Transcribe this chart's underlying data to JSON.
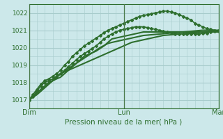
{
  "title": "Pression niveau de la mer( hPa )",
  "bg_color": "#cce8ea",
  "grid_color": "#a8cccc",
  "line_color": "#2d6e2d",
  "xlim": [
    0,
    48
  ],
  "ylim": [
    1016.5,
    1022.5
  ],
  "yticks": [
    1017,
    1018,
    1019,
    1020,
    1021,
    1022
  ],
  "xtick_labels": [
    "Dim",
    "Lun",
    "Mar"
  ],
  "xtick_positions": [
    0,
    24,
    48
  ],
  "vline_positions": [
    0,
    24,
    48
  ],
  "series": [
    {
      "y": [
        1017.0,
        1017.15,
        1017.3,
        1017.5,
        1017.7,
        1017.9,
        1018.1,
        1018.3,
        1018.5,
        1018.6,
        1018.7,
        1018.8,
        1018.9,
        1019.0,
        1019.1,
        1019.2,
        1019.3,
        1019.4,
        1019.5,
        1019.6,
        1019.7,
        1019.8,
        1019.9,
        1020.0,
        1020.1,
        1020.2,
        1020.3,
        1020.35,
        1020.4,
        1020.45,
        1020.5,
        1020.55,
        1020.6,
        1020.65,
        1020.7,
        1020.72,
        1020.74,
        1020.76,
        1020.78,
        1020.8,
        1020.82,
        1020.84,
        1020.86,
        1020.88,
        1020.9,
        1020.92,
        1020.94,
        1020.96,
        1020.98
      ],
      "lw": 1.5,
      "marker": false,
      "zorder": 2
    },
    {
      "y": [
        1017.0,
        1017.15,
        1017.3,
        1017.5,
        1017.7,
        1017.9,
        1018.1,
        1018.3,
        1018.5,
        1018.65,
        1018.8,
        1018.95,
        1019.1,
        1019.25,
        1019.4,
        1019.55,
        1019.7,
        1019.85,
        1020.0,
        1020.12,
        1020.24,
        1020.3,
        1020.35,
        1020.4,
        1020.45,
        1020.5,
        1020.55,
        1020.6,
        1020.65,
        1020.7,
        1020.72,
        1020.74,
        1020.76,
        1020.78,
        1020.8,
        1020.82,
        1020.84,
        1020.86,
        1020.88,
        1020.9,
        1020.92,
        1020.94,
        1020.96,
        1020.98,
        1021.0,
        1021.0,
        1021.0,
        1021.0,
        1021.0
      ],
      "lw": 1.5,
      "marker": false,
      "zorder": 2
    },
    {
      "y": [
        1017.0,
        1017.2,
        1017.4,
        1017.6,
        1017.8,
        1018.0,
        1018.1,
        1018.2,
        1018.3,
        1018.5,
        1018.7,
        1018.9,
        1019.1,
        1019.3,
        1019.5,
        1019.6,
        1019.7,
        1019.8,
        1019.95,
        1020.1,
        1020.3,
        1020.5,
        1020.55,
        1020.6,
        1020.65,
        1020.7,
        1020.75,
        1020.8,
        1020.85,
        1020.9,
        1020.9,
        1020.9,
        1020.9,
        1020.9,
        1020.9,
        1020.9,
        1020.9,
        1020.9,
        1020.9,
        1020.9,
        1020.9,
        1020.9,
        1020.9,
        1020.9,
        1020.9,
        1020.9,
        1020.9,
        1020.9,
        1020.9
      ],
      "lw": 1.5,
      "marker": false,
      "zorder": 2
    },
    {
      "y": [
        1017.0,
        1017.2,
        1017.5,
        1017.8,
        1018.0,
        1018.1,
        1018.2,
        1018.35,
        1018.5,
        1018.7,
        1018.9,
        1019.1,
        1019.3,
        1019.5,
        1019.65,
        1019.8,
        1019.95,
        1020.1,
        1020.3,
        1020.5,
        1020.65,
        1020.8,
        1020.9,
        1021.0,
        1021.05,
        1021.1,
        1021.15,
        1021.2,
        1021.2,
        1021.2,
        1021.15,
        1021.1,
        1021.05,
        1021.0,
        1020.95,
        1020.9,
        1020.85,
        1020.8,
        1020.8,
        1020.8,
        1020.8,
        1020.8,
        1020.8,
        1020.8,
        1020.82,
        1020.84,
        1020.9,
        1020.95,
        1021.0
      ],
      "lw": 1.2,
      "marker": true,
      "zorder": 3
    },
    {
      "y": [
        1017.0,
        1017.3,
        1017.6,
        1017.9,
        1018.1,
        1018.2,
        1018.35,
        1018.5,
        1018.7,
        1019.0,
        1019.2,
        1019.5,
        1019.7,
        1019.9,
        1020.1,
        1020.25,
        1020.4,
        1020.55,
        1020.7,
        1020.85,
        1021.0,
        1021.1,
        1021.2,
        1021.3,
        1021.4,
        1021.5,
        1021.6,
        1021.7,
        1021.8,
        1021.85,
        1021.9,
        1021.95,
        1022.0,
        1022.05,
        1022.1,
        1022.1,
        1022.05,
        1022.0,
        1021.9,
        1021.8,
        1021.7,
        1021.6,
        1021.4,
        1021.3,
        1021.2,
        1021.1,
        1021.05,
        1021.0,
        1020.95
      ],
      "lw": 1.2,
      "marker": true,
      "zorder": 3
    }
  ],
  "marker": "D",
  "markersize": 2.0,
  "ylabel_fontsize": 6.5,
  "xlabel_fontsize": 7.5,
  "xtick_fontsize": 7.0
}
